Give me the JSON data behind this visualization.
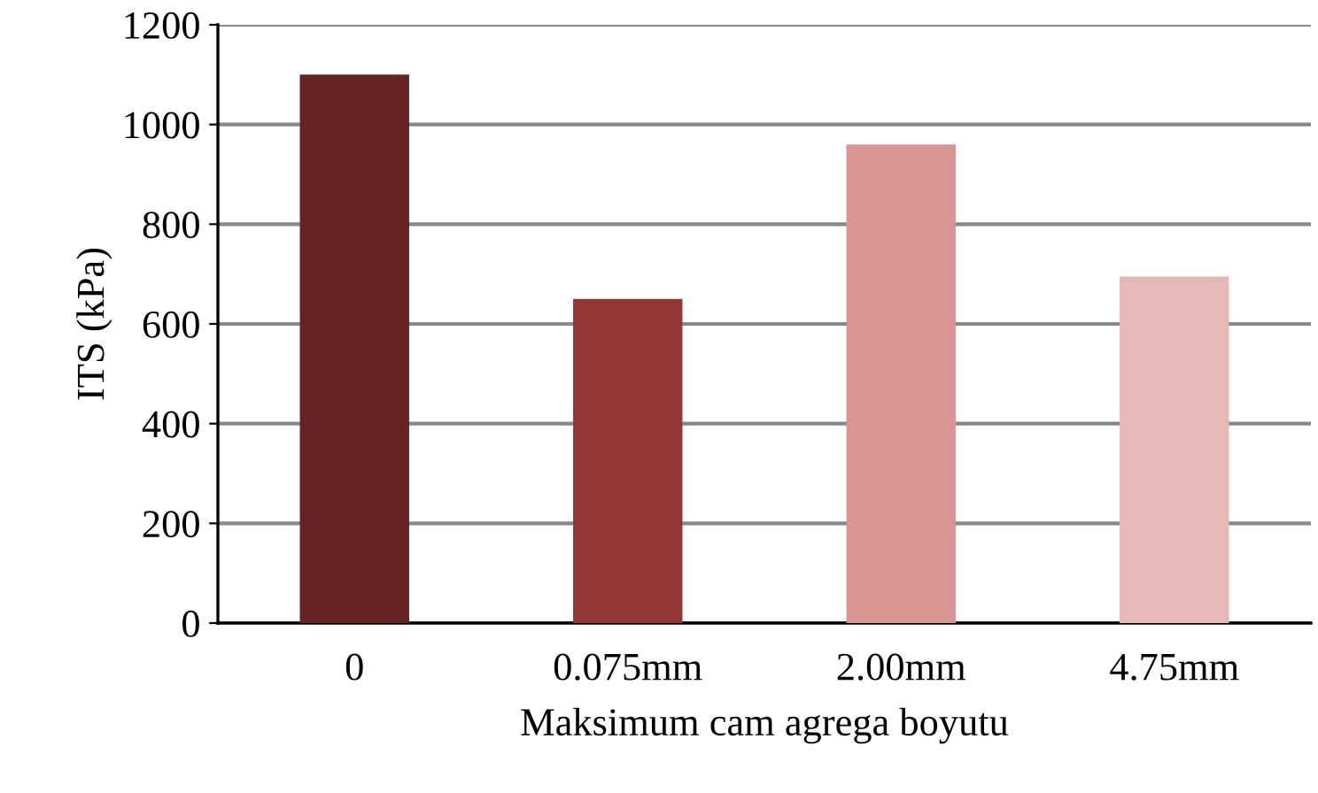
{
  "chart_data": {
    "type": "bar",
    "xlabel": "Maksimum cam agrega boyutu",
    "ylabel": "ITS (kPa)",
    "categories": [
      "0",
      "0.075mm",
      "2.00mm",
      "4.75mm"
    ],
    "values": [
      1100,
      650,
      960,
      695
    ],
    "colors": [
      "#662323",
      "#943634",
      "#d99594",
      "#e5b8b7"
    ],
    "ylim": [
      0,
      1200
    ],
    "yticks": [
      0,
      200,
      400,
      600,
      800,
      1000,
      1200
    ],
    "grid": "y"
  }
}
